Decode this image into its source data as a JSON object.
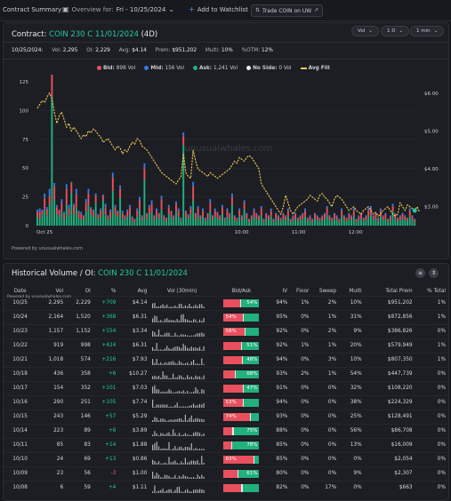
{
  "topbar": {
    "title": "Contract Summary",
    "overview_label": "Overview for:",
    "overview_value": "Fri - 10/25/2024",
    "watchlist_label": "Add to Watchlist",
    "trade_label": "Trade COIN on UW"
  },
  "contract": {
    "label": "Contract:",
    "ticker": "COIN 230 C 11/01/2024",
    "dte": "(4D)"
  },
  "controls": {
    "type": "Vol",
    "range": "1 D",
    "interval": "1 min"
  },
  "stats": {
    "date": "10/25/2024:",
    "vol_label": "Vol:",
    "vol": "2,295",
    "oi_label": "OI:",
    "oi": "2,229",
    "avg_label": "Avg:",
    "avg": "$4.14",
    "prem_label": "Prem:",
    "prem": "$951,202",
    "multi_label": "Multi:",
    "multi": "10%",
    "otm_label": "%OTM:",
    "otm": "12%"
  },
  "legend": {
    "bid": "Bid:",
    "bid_vol": "898 Vol",
    "mid": "Mid:",
    "mid_vol": "156 Vol",
    "ask": "Ask:",
    "ask_vol": "1,241 Vol",
    "noside": "No Side:",
    "noside_vol": "0 Vol",
    "avgfill": "Avg Fill"
  },
  "colors": {
    "bid": "#e8505e",
    "mid": "#2f7be6",
    "ask": "#22b07d",
    "noside": "#e8eaee",
    "avgfill": "#f0c755",
    "teal": "#22c9a3"
  },
  "watermark": "unusualwhales.com",
  "powered": "Powered by unusualwhales.com",
  "chart_data": {
    "type": "bar",
    "title": "",
    "y_left_ticks": [
      "125",
      "100",
      "75",
      "50",
      "25",
      "0"
    ],
    "y_left_range": [
      0,
      125
    ],
    "y_right_ticks": [
      "$6.00",
      "$5.00",
      "$4.00",
      "$3.00"
    ],
    "y_right_range": [
      2.5,
      6.3
    ],
    "x_ticks": [
      "Oct 25",
      "10:00",
      "11:00",
      "12:00"
    ],
    "series": [
      {
        "name": "Bid",
        "values": [
          4,
          6,
          3,
          10,
          5,
          8,
          20,
          12,
          6,
          5,
          8,
          4,
          14,
          6,
          9,
          7,
          11,
          5,
          4,
          3,
          8,
          10,
          5,
          4,
          6,
          3,
          5,
          4,
          7,
          3,
          5,
          12,
          6,
          4,
          8,
          5,
          3,
          4,
          6,
          3,
          2,
          5,
          8,
          3,
          10,
          4,
          6,
          7,
          3,
          5,
          4,
          9,
          3,
          2,
          6,
          4,
          3,
          7,
          5,
          2,
          8,
          4,
          3,
          5,
          12,
          4,
          6,
          3,
          5,
          2,
          4,
          8,
          3,
          5,
          4,
          3,
          6,
          2,
          5,
          4,
          7,
          3,
          2,
          5,
          3,
          6,
          4,
          2,
          3,
          5,
          4,
          3,
          6,
          2,
          4,
          3,
          5,
          2,
          4,
          3,
          2,
          4,
          3,
          5,
          2,
          3,
          4,
          2,
          3,
          4,
          5,
          2,
          3,
          2,
          4,
          3,
          2,
          3,
          4,
          6,
          3,
          2,
          4,
          3,
          2,
          5,
          3,
          2,
          4,
          3,
          5,
          2,
          3,
          4,
          2,
          3,
          5,
          6,
          3,
          4,
          2,
          5,
          3,
          4,
          2,
          3,
          5,
          4,
          2,
          3,
          4,
          3,
          2,
          5,
          3,
          2
        ]
      },
      {
        "name": "Mid",
        "values": [
          2,
          3,
          1,
          4,
          2,
          6,
          14,
          3,
          2,
          1,
          3,
          2,
          4,
          3,
          1,
          2,
          5,
          1,
          2,
          1,
          3,
          4,
          1,
          2,
          2,
          1,
          2,
          1,
          3,
          1,
          2,
          4,
          2,
          1,
          3,
          2,
          1,
          2,
          2,
          1,
          1,
          2,
          3,
          1,
          4,
          1,
          2,
          3,
          1,
          2,
          1,
          3,
          1,
          1,
          2,
          1,
          1,
          2,
          2,
          1,
          3,
          1,
          1,
          2,
          4,
          1,
          2,
          1,
          2,
          1,
          1,
          3,
          1,
          2,
          1,
          1,
          2,
          1,
          2,
          1,
          3,
          1,
          1,
          2,
          1,
          2,
          1,
          1,
          1,
          2,
          1,
          1,
          2,
          1,
          1,
          1,
          2,
          1,
          1,
          1,
          1,
          1,
          1,
          2,
          1,
          1,
          1,
          1,
          1,
          1,
          2,
          1,
          1,
          1,
          1,
          1,
          1,
          1,
          1,
          2,
          1,
          1,
          1,
          1,
          1,
          2,
          1,
          1,
          1,
          1,
          2,
          1,
          1,
          1,
          1,
          1,
          2,
          2,
          1,
          1,
          1,
          2,
          1,
          1,
          1,
          1,
          2,
          1,
          1,
          1,
          1,
          1,
          1,
          2,
          1,
          1
        ]
      },
      {
        "name": "Ask",
        "values": [
          8,
          6,
          10,
          14,
          9,
          18,
          112,
          22,
          10,
          8,
          12,
          6,
          18,
          9,
          28,
          10,
          16,
          7,
          6,
          5,
          12,
          18,
          10,
          8,
          20,
          6,
          8,
          22,
          9,
          5,
          7,
          30,
          10,
          8,
          24,
          6,
          5,
          8,
          10,
          4,
          3,
          8,
          14,
          5,
          40,
          6,
          10,
          12,
          5,
          8,
          6,
          14,
          5,
          4,
          10,
          8,
          5,
          12,
          8,
          4,
          70,
          8,
          6,
          10,
          22,
          6,
          9,
          5,
          8,
          4,
          6,
          12,
          5,
          8,
          7,
          5,
          10,
          4,
          8,
          6,
          18,
          5,
          4,
          8,
          5,
          14,
          6,
          3,
          5,
          8,
          6,
          5,
          9,
          3,
          6,
          5,
          8,
          3,
          6,
          5,
          4,
          6,
          5,
          8,
          3,
          5,
          6,
          4,
          5,
          6,
          8,
          4,
          5,
          3,
          6,
          5,
          4,
          5,
          6,
          9,
          5,
          4,
          6,
          5,
          3,
          8,
          5,
          4,
          6,
          5,
          8,
          3,
          5,
          6,
          4,
          5,
          8,
          9,
          5,
          6,
          4,
          8,
          5,
          6,
          3,
          5,
          12,
          6,
          4,
          5,
          6,
          5,
          4,
          8,
          5,
          3
        ]
      },
      {
        "name": "Avg Fill",
        "values": [
          5.6,
          5.7,
          5.8,
          5.75,
          5.9,
          6.0,
          5.85,
          5.5,
          5.2,
          5.4,
          5.5,
          5.3,
          5.1,
          5.2,
          5.0,
          5.1,
          5.0,
          4.9,
          4.8,
          4.9,
          4.85,
          5.0,
          4.95,
          5.05,
          5.0,
          4.9,
          4.85,
          4.7,
          4.75,
          4.8,
          4.7,
          4.6,
          4.5,
          4.6,
          4.55,
          4.4,
          4.5,
          4.45,
          4.6,
          4.7,
          4.65,
          4.8,
          4.75,
          4.6,
          4.55,
          4.5,
          4.4,
          4.3,
          4.2,
          4.1,
          4.0,
          3.9,
          3.85,
          3.8,
          3.75,
          3.7,
          3.65,
          3.6,
          3.7,
          3.8,
          4.4,
          3.9,
          3.8,
          3.75,
          4.5,
          4.2,
          4.0,
          3.95,
          3.9,
          3.85,
          3.8,
          3.9,
          3.85,
          3.8,
          3.75,
          3.8,
          3.85,
          3.9,
          3.95,
          4.0,
          4.1,
          4.2,
          4.15,
          4.3,
          4.25,
          4.2,
          4.3,
          4.35,
          4.3,
          4.2,
          4.1,
          4.0,
          3.6,
          3.5,
          3.4,
          3.3,
          3.2,
          3.1,
          3.0,
          2.9,
          2.8,
          3.0,
          3.3,
          3.1,
          2.9,
          2.8,
          2.9,
          3.0,
          3.05,
          3.1,
          3.15,
          3.2,
          3.3,
          3.25,
          3.2,
          3.15,
          3.3,
          3.35,
          3.25,
          3.2,
          3.1,
          3.0,
          3.2,
          3.3,
          3.25,
          3.2,
          3.1,
          3.0,
          2.9,
          2.95,
          3.0,
          2.9,
          2.85,
          2.8,
          2.9,
          2.95,
          3.0,
          2.9,
          2.8,
          2.85,
          2.75,
          2.8,
          2.9,
          2.95,
          3.0,
          2.9,
          2.8,
          2.75,
          2.8,
          3.1,
          3.0,
          2.9,
          3.05,
          3.0,
          2.95,
          2.9,
          3.0,
          2.85
        ]
      }
    ]
  },
  "history": {
    "title": "Historical Volume / OI:",
    "ticker": "COIN 230 C 11/01/2024",
    "powered": "Powered by unusualwhales.com",
    "columns": [
      "Date",
      "Vol",
      "OI",
      "%",
      "Avg",
      "Vol (30min)",
      "Bid/Ask",
      "IV",
      "Floor",
      "Sweep",
      "Multi",
      "Total Prem",
      "% Total"
    ],
    "rows": [
      {
        "date": "10/25",
        "vol": "2,295",
        "oi": "2,229",
        "chg": "+709",
        "avg": "$4.14",
        "bid": 0.46,
        "ask_label": "54%",
        "iv": "94%",
        "floor": "1%",
        "sweep": "2%",
        "multi": "10%",
        "prem": "$951,202",
        "pct": "1%"
      },
      {
        "date": "10/24",
        "vol": "2,164",
        "oi": "1,520",
        "chg": "+368",
        "avg": "$6.31",
        "bid": 0.54,
        "ask_label": "54%",
        "iv": "95%",
        "floor": "0%",
        "sweep": "1%",
        "multi": "31%",
        "prem": "$872,856",
        "pct": "1%"
      },
      {
        "date": "10/23",
        "vol": "1,157",
        "oi": "1,152",
        "chg": "+154",
        "avg": "$3.34",
        "bid": 0.58,
        "ask_label": "58%",
        "iv": "92%",
        "floor": "0%",
        "sweep": "2%",
        "multi": "9%",
        "prem": "$386,826",
        "pct": "0%"
      },
      {
        "date": "10/22",
        "vol": "919",
        "oi": "998",
        "chg": "+424",
        "avg": "$6.31",
        "bid": 0.49,
        "ask_label": "51%",
        "iv": "92%",
        "floor": "1%",
        "sweep": "1%",
        "multi": "20%",
        "prem": "$579,949",
        "pct": "1%"
      },
      {
        "date": "10/21",
        "vol": "1,018",
        "oi": "574",
        "chg": "+216",
        "avg": "$7.93",
        "bid": 0.52,
        "ask_label": "48%",
        "iv": "94%",
        "floor": "0%",
        "sweep": "3%",
        "multi": "10%",
        "prem": "$807,350",
        "pct": "1%"
      },
      {
        "date": "10/18",
        "vol": "436",
        "oi": "358",
        "chg": "+6",
        "avg": "$10.27",
        "bid": 0.32,
        "ask_label": "68%",
        "iv": "93%",
        "floor": "2%",
        "sweep": "1%",
        "multi": "54%",
        "prem": "$447,739",
        "pct": "0%"
      },
      {
        "date": "10/17",
        "vol": "154",
        "oi": "352",
        "chg": "+101",
        "avg": "$7.03",
        "bid": 0.53,
        "ask_label": "47%",
        "iv": "91%",
        "floor": "0%",
        "sweep": "0%",
        "multi": "32%",
        "prem": "$108,220",
        "pct": "0%"
      },
      {
        "date": "10/16",
        "vol": "290",
        "oi": "251",
        "chg": "+105",
        "avg": "$7.74",
        "bid": 0.53,
        "ask_label": "53%",
        "iv": "94%",
        "floor": "0%",
        "sweep": "0%",
        "multi": "38%",
        "prem": "$224,329",
        "pct": "0%"
      },
      {
        "date": "10/15",
        "vol": "243",
        "oi": "146",
        "chg": "+57",
        "avg": "$5.29",
        "bid": 0.74,
        "ask_label": "74%",
        "iv": "93%",
        "floor": "0%",
        "sweep": "0%",
        "multi": "25%",
        "prem": "$128,491",
        "pct": "0%"
      },
      {
        "date": "10/14",
        "vol": "223",
        "oi": "89",
        "chg": "+6",
        "avg": "$3.89",
        "bid": 0.25,
        "ask_label": "75%",
        "iv": "88%",
        "floor": "0%",
        "sweep": "0%",
        "multi": "56%",
        "prem": "$86,708",
        "pct": "0%"
      },
      {
        "date": "10/11",
        "vol": "85",
        "oi": "83",
        "chg": "+14",
        "avg": "$1.88",
        "bid": 0.22,
        "ask_label": "78%",
        "iv": "85%",
        "floor": "0%",
        "sweep": "0%",
        "multi": "13%",
        "prem": "$16,009",
        "pct": "0%"
      },
      {
        "date": "10/10",
        "vol": "24",
        "oi": "69",
        "chg": "+13",
        "avg": "$0.86",
        "bid": 0.83,
        "ask_label": "83%",
        "iv": "85%",
        "floor": "0%",
        "sweep": "0%",
        "multi": "0%",
        "prem": "$2,054",
        "pct": "0%"
      },
      {
        "date": "10/09",
        "vol": "23",
        "oi": "56",
        "chg": "-3",
        "avg": "$1.00",
        "bid": 0.39,
        "ask_label": "61%",
        "iv": "80%",
        "floor": "0%",
        "sweep": "0%",
        "multi": "9%",
        "prem": "$2,307",
        "pct": "0%"
      },
      {
        "date": "10/08",
        "vol": "6",
        "oi": "59",
        "chg": "+4",
        "avg": "$1.11",
        "bid": 0.5,
        "ask_label": "",
        "iv": "82%",
        "floor": "0%",
        "sweep": "17%",
        "multi": "0%",
        "prem": "$663",
        "pct": "0%"
      }
    ]
  }
}
